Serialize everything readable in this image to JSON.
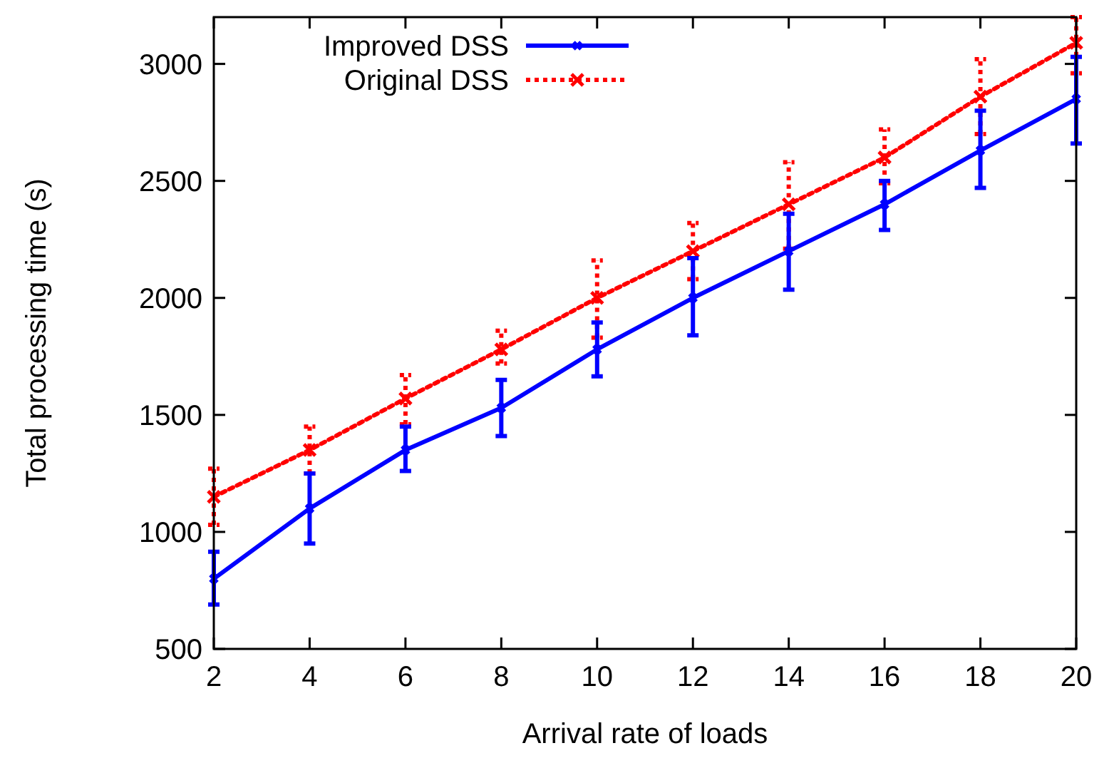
{
  "chart_data": {
    "type": "line",
    "xlabel": "Arrival rate of loads",
    "ylabel": "Total processing time (s)",
    "x": [
      2,
      4,
      6,
      8,
      10,
      12,
      14,
      16,
      18,
      20
    ],
    "xlim": [
      2,
      20
    ],
    "xticks": [
      2,
      4,
      6,
      8,
      10,
      12,
      14,
      16,
      18,
      20
    ],
    "ylim": [
      500,
      3200
    ],
    "yticks": [
      500,
      1000,
      1500,
      2000,
      2500,
      3000
    ],
    "grid": false,
    "legend": "top left",
    "marker": "cross",
    "series": [
      {
        "name": "Improved DSS",
        "color": "#0000ff",
        "line_style": "solid",
        "values": [
          800,
          1100,
          1350,
          1530,
          1780,
          2000,
          2200,
          2400,
          2630,
          2850
        ],
        "errors": [
          [
            690,
            915
          ],
          [
            950,
            1250
          ],
          [
            1260,
            1450
          ],
          [
            1410,
            1650
          ],
          [
            1665,
            1895
          ],
          [
            1840,
            2170
          ],
          [
            2035,
            2360
          ],
          [
            2290,
            2500
          ],
          [
            2470,
            2800
          ],
          [
            2660,
            3030
          ]
        ]
      },
      {
        "name": "Original DSS",
        "color": "#ff0000",
        "line_style": "dotted",
        "values": [
          1150,
          1350,
          1570,
          1780,
          2000,
          2200,
          2400,
          2600,
          2860,
          3090
        ],
        "errors": [
          [
            1030,
            1270
          ],
          [
            1250,
            1450
          ],
          [
            1460,
            1670
          ],
          [
            1720,
            1860
          ],
          [
            1830,
            2160
          ],
          [
            2080,
            2320
          ],
          [
            2210,
            2580
          ],
          [
            2490,
            2720
          ],
          [
            2700,
            3020
          ],
          [
            2960,
            3200
          ]
        ]
      }
    ]
  }
}
